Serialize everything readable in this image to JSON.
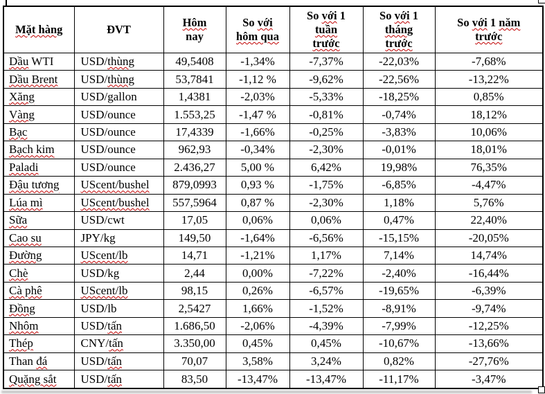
{
  "page": {
    "background": "#ffffff",
    "table_border_color": "#000000",
    "squiggle_color": "#c00000"
  },
  "table": {
    "header": [
      {
        "id": "commodity",
        "lines": [
          [
            {
              "t": "Mặt hàng",
              "sq": true
            }
          ]
        ]
      },
      {
        "id": "unit",
        "lines": [
          [
            {
              "t": "ĐVT",
              "sq": false
            }
          ]
        ]
      },
      {
        "id": "today",
        "lines": [
          [
            {
              "t": "Hôm",
              "sq": true
            }
          ],
          [
            {
              "t": "nay",
              "sq": false
            }
          ]
        ]
      },
      {
        "id": "vs-yesterday",
        "lines": [
          [
            {
              "t": "So ",
              "sq": false
            },
            {
              "t": "với",
              "sq": true
            }
          ],
          [
            {
              "t": "hôm qua",
              "sq": true
            }
          ]
        ]
      },
      {
        "id": "vs-week",
        "lines": [
          [
            {
              "t": "So ",
              "sq": false
            },
            {
              "t": "với",
              "sq": true
            },
            {
              "t": " 1",
              "sq": false
            }
          ],
          [
            {
              "t": "tuần",
              "sq": true
            }
          ],
          [
            {
              "t": "trước",
              "sq": true
            }
          ]
        ]
      },
      {
        "id": "vs-month",
        "lines": [
          [
            {
              "t": "So ",
              "sq": false
            },
            {
              "t": "với",
              "sq": true
            },
            {
              "t": " 1",
              "sq": false
            }
          ],
          [
            {
              "t": "tháng",
              "sq": true
            }
          ],
          [
            {
              "t": "trước",
              "sq": true
            }
          ]
        ]
      },
      {
        "id": "vs-year",
        "lines": [
          [
            {
              "t": "So ",
              "sq": false
            },
            {
              "t": "với",
              "sq": true
            },
            {
              "t": " 1 ",
              "sq": false
            },
            {
              "t": "năm",
              "sq": true
            }
          ],
          [
            {
              "t": "trước",
              "sq": true
            }
          ]
        ]
      }
    ],
    "rows": [
      {
        "name": [
          {
            "t": "Dầu",
            "sq": true
          },
          {
            "t": " WTI",
            "sq": false
          }
        ],
        "unit": [
          {
            "t": "USD/",
            "sq": false
          },
          {
            "t": "thùng",
            "sq": true
          }
        ],
        "today": "49,5408",
        "vs_yesterday": "-1,34%",
        "vs_week": "-7,37%",
        "vs_month": "-22,03%",
        "vs_year": "-7,68%"
      },
      {
        "name": [
          {
            "t": "Dầu Brent",
            "sq": true
          }
        ],
        "unit": [
          {
            "t": "USD/",
            "sq": false
          },
          {
            "t": "thùng",
            "sq": true
          }
        ],
        "today": "53,7841",
        "vs_yesterday": "-1,12 %",
        "vs_week": "-9,62%",
        "vs_month": "-22,56%",
        "vs_year": "-13,22%"
      },
      {
        "name": [
          {
            "t": "Xăng",
            "sq": true
          }
        ],
        "unit": [
          {
            "t": "USD/gallon",
            "sq": false
          }
        ],
        "today": "1,4381",
        "vs_yesterday": "-2,03%",
        "vs_week": "-5,33%",
        "vs_month": "-18,25%",
        "vs_year": "0,85%"
      },
      {
        "name": [
          {
            "t": "Vàng",
            "sq": true
          }
        ],
        "unit": [
          {
            "t": "USD/ounce",
            "sq": false
          }
        ],
        "today": "1.553,25",
        "vs_yesterday": "-1,47 %",
        "vs_week": "-0,81%",
        "vs_month": "-0,74%",
        "vs_year": "18,12%"
      },
      {
        "name": [
          {
            "t": "Bạc",
            "sq": true
          }
        ],
        "unit": [
          {
            "t": "USD/ounce",
            "sq": false
          }
        ],
        "today": "17,4339",
        "vs_yesterday": "-1,66%",
        "vs_week": "-0,25%",
        "vs_month": "-3,83%",
        "vs_year": "10,06%"
      },
      {
        "name": [
          {
            "t": "Bạch kim",
            "sq": true
          }
        ],
        "unit": [
          {
            "t": "USD/ounce",
            "sq": false
          }
        ],
        "today": "962,93",
        "vs_yesterday": "-0,34%",
        "vs_week": "-2,30%",
        "vs_month": "-0,01%",
        "vs_year": "18,01%"
      },
      {
        "name": [
          {
            "t": "Paladi",
            "sq": true
          }
        ],
        "unit": [
          {
            "t": "USD/ounce",
            "sq": false
          }
        ],
        "today": "2.436,27",
        "vs_yesterday": "5,00 %",
        "vs_week": "6,42%",
        "vs_month": "19,98%",
        "vs_year": "76,35%"
      },
      {
        "name": [
          {
            "t": "Đậu tương",
            "sq": true
          }
        ],
        "unit": [
          {
            "t": "UScent/bushel",
            "sq": true
          }
        ],
        "today": "879,0993",
        "vs_yesterday": "0,93 %",
        "vs_week": "-1,75%",
        "vs_month": "-6,85%",
        "vs_year": "-4,47%"
      },
      {
        "name": [
          {
            "t": "Lúa mì",
            "sq": true
          }
        ],
        "unit": [
          {
            "t": "UScent/bushel",
            "sq": true
          }
        ],
        "today": "557,5964",
        "vs_yesterday": "0,87 %",
        "vs_week": "-2,30%",
        "vs_month": "1,18%",
        "vs_year": "5,76%"
      },
      {
        "name": [
          {
            "t": "Sữa",
            "sq": true
          }
        ],
        "unit": [
          {
            "t": "USD/cwt",
            "sq": false
          }
        ],
        "today": "17,05",
        "vs_yesterday": "0,06%",
        "vs_week": "0,06%",
        "vs_month": "0,47%",
        "vs_year": "22,40%"
      },
      {
        "name": [
          {
            "t": "Cao su",
            "sq": true
          }
        ],
        "unit": [
          {
            "t": "JPY/kg",
            "sq": false
          }
        ],
        "today": "149,50",
        "vs_yesterday": "-1,64%",
        "vs_week": "-6,56%",
        "vs_month": "-15,15%",
        "vs_year": "-20,05%"
      },
      {
        "name": [
          {
            "t": "Đường",
            "sq": true
          }
        ],
        "unit": [
          {
            "t": "UScent/lb",
            "sq": true
          }
        ],
        "today": "14,71",
        "vs_yesterday": "-1,21%",
        "vs_week": "1,17%",
        "vs_month": "7,14%",
        "vs_year": "14,74%"
      },
      {
        "name": [
          {
            "t": "Chè",
            "sq": true
          }
        ],
        "unit": [
          {
            "t": "USD/kg",
            "sq": false
          }
        ],
        "today": "2,44",
        "vs_yesterday": "0,00%",
        "vs_week": "-7,22%",
        "vs_month": "-2,40%",
        "vs_year": "-16,44%"
      },
      {
        "name": [
          {
            "t": "Cà phê",
            "sq": true
          }
        ],
        "unit": [
          {
            "t": "UScent/lb",
            "sq": true
          }
        ],
        "today": "98,15",
        "vs_yesterday": "0,26%",
        "vs_week": "-6,57%",
        "vs_month": "-19,65%",
        "vs_year": "-6,39%"
      },
      {
        "name": [
          {
            "t": "Đồng",
            "sq": true
          }
        ],
        "unit": [
          {
            "t": "USD/lb",
            "sq": false
          }
        ],
        "today": "2,5427",
        "vs_yesterday": "1,66%",
        "vs_week": "-1,52%",
        "vs_month": "-8,91%",
        "vs_year": "-9,74%"
      },
      {
        "name": [
          {
            "t": "Nhôm",
            "sq": true
          }
        ],
        "unit": [
          {
            "t": "USD/",
            "sq": false
          },
          {
            "t": "tấn",
            "sq": true
          }
        ],
        "today": "1.686,50",
        "vs_yesterday": "-2,06%",
        "vs_week": "-4,39%",
        "vs_month": "-7,99%",
        "vs_year": "-12,25%"
      },
      {
        "name": [
          {
            "t": "Thép",
            "sq": true
          }
        ],
        "unit": [
          {
            "t": "CNY/",
            "sq": false
          },
          {
            "t": "tấn",
            "sq": true
          }
        ],
        "today": "3.350,00",
        "vs_yesterday": "0,45%",
        "vs_week": "0,45%",
        "vs_month": "-10,67%",
        "vs_year": "-13,66%"
      },
      {
        "name": [
          {
            "t": "Than ",
            "sq": false
          },
          {
            "t": "đá",
            "sq": true
          }
        ],
        "unit": [
          {
            "t": "USD/",
            "sq": false
          },
          {
            "t": "tấn",
            "sq": true
          }
        ],
        "today": "70,07",
        "vs_yesterday": "3,58%",
        "vs_week": "3,24%",
        "vs_month": "0,82%",
        "vs_year": "-27,76%"
      },
      {
        "name": [
          {
            "t": "Quặng sắt",
            "sq": true
          }
        ],
        "unit": [
          {
            "t": "USD/",
            "sq": false
          },
          {
            "t": "tấn",
            "sq": true
          }
        ],
        "today": "83,50",
        "vs_yesterday": "-13,47%",
        "vs_week": "-13,47%",
        "vs_month": "-11,17%",
        "vs_year": "-3,47%"
      }
    ]
  }
}
